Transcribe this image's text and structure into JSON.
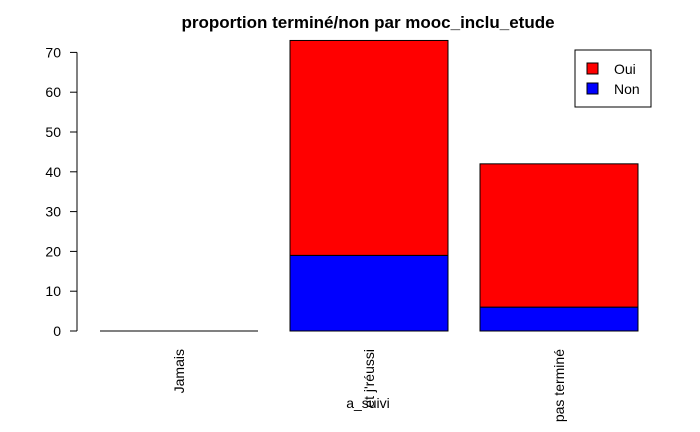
{
  "chart_data": {
    "type": "bar",
    "stacked": true,
    "title": "proportion terminé/non par mooc_inclu_etude",
    "xlabel": "a_suivi",
    "ylabel": "",
    "ylim": [
      0,
      73
    ],
    "yticks": [
      0,
      10,
      20,
      30,
      40,
      50,
      60,
      70
    ],
    "categories": [
      "Jamais",
      "Oui, et j'ai réussi",
      "Oui, mais pas terminé"
    ],
    "category_labels_visible": [
      "Jamais",
      "et j'réussi",
      "pas terminé"
    ],
    "series": [
      {
        "name": "Non",
        "color": "#0000ff",
        "values": [
          0,
          19,
          6
        ]
      },
      {
        "name": "Oui",
        "color": "#ff0000",
        "values": [
          0,
          54,
          36
        ]
      }
    ],
    "legend": {
      "position": "top-right",
      "entries": [
        {
          "label": "Oui",
          "color": "#ff0000"
        },
        {
          "label": "Non",
          "color": "#0000ff"
        }
      ]
    }
  }
}
